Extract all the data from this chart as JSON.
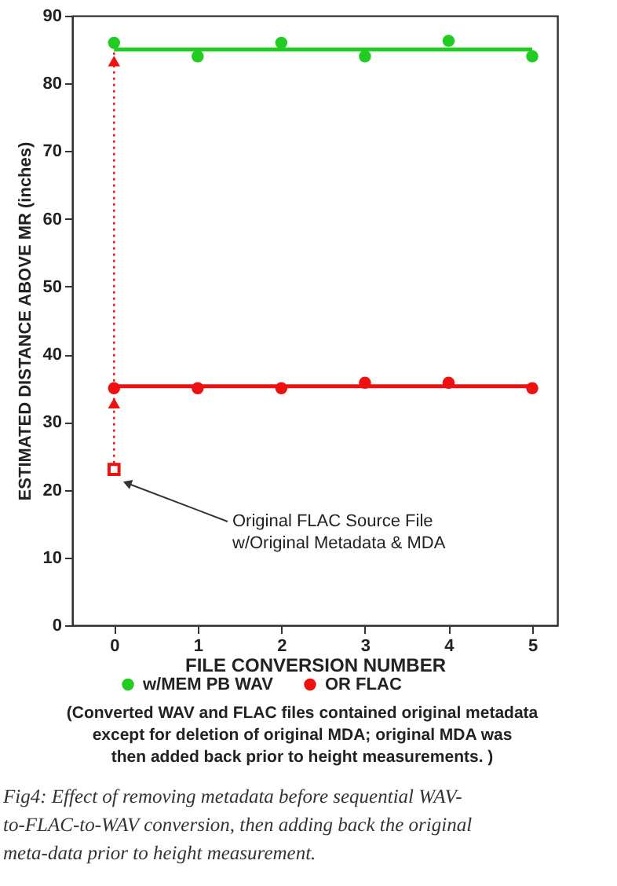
{
  "chart_data": {
    "type": "scatter",
    "xlabel": "FILE CONVERSION NUMBER",
    "ylabel": "ESTIMATED DISTANCE ABOVE MR (inches)",
    "xlim": [
      -0.5,
      5.3
    ],
    "xticks": [
      0,
      1,
      2,
      3,
      4,
      5
    ],
    "ylim": [
      0,
      90
    ],
    "yticks": [
      0,
      10,
      20,
      30,
      40,
      50,
      60,
      70,
      80,
      90
    ],
    "grid": false,
    "legend": "bottom",
    "series": [
      {
        "name": "w/MEM PB WAV",
        "marker": "circle",
        "color": "#22cc22",
        "x": [
          0,
          1,
          2,
          3,
          4,
          5
        ],
        "values": [
          86,
          84,
          86,
          84,
          86.3,
          84
        ]
      },
      {
        "type": "line",
        "marker": "none",
        "line_style": "solid",
        "color": "#22cc22",
        "x": [
          0,
          5
        ],
        "values": [
          85,
          85
        ]
      },
      {
        "name": "OR FLAC",
        "marker": "circle",
        "color": "#ee1111",
        "x": [
          0,
          1,
          2,
          3,
          4,
          5
        ],
        "values": [
          35,
          35,
          35,
          35.8,
          35.8,
          35
        ]
      },
      {
        "type": "line",
        "marker": "none",
        "line_style": "solid",
        "color": "#ee1111",
        "x": [
          0,
          5
        ],
        "values": [
          35.3,
          35.3
        ]
      },
      {
        "type": "line",
        "marker": "none",
        "line_style": "dotted",
        "color": "#ee1111",
        "x": [
          0,
          0
        ],
        "values": [
          23,
          85
        ]
      },
      {
        "marker": "triangle",
        "color": "#ee1111",
        "x": [
          0,
          0
        ],
        "values": [
          83.3,
          32.8
        ]
      },
      {
        "marker": "square",
        "color": "#ee1111",
        "x": [
          0
        ],
        "values": [
          23
        ]
      }
    ],
    "annotations": [
      "Original FLAC Source File\nw/Original Metadata & MDA",
      "(Converted WAV and FLAC files contained original metadata except for deletion of original MDA; original MDA was then added back prior to height measurements. )",
      "Fig4: Effect of removing metadata before sequential WAV-to-FLAC-to-WAV conversion, then adding back the original meta-data prior to height measurement."
    ]
  }
}
